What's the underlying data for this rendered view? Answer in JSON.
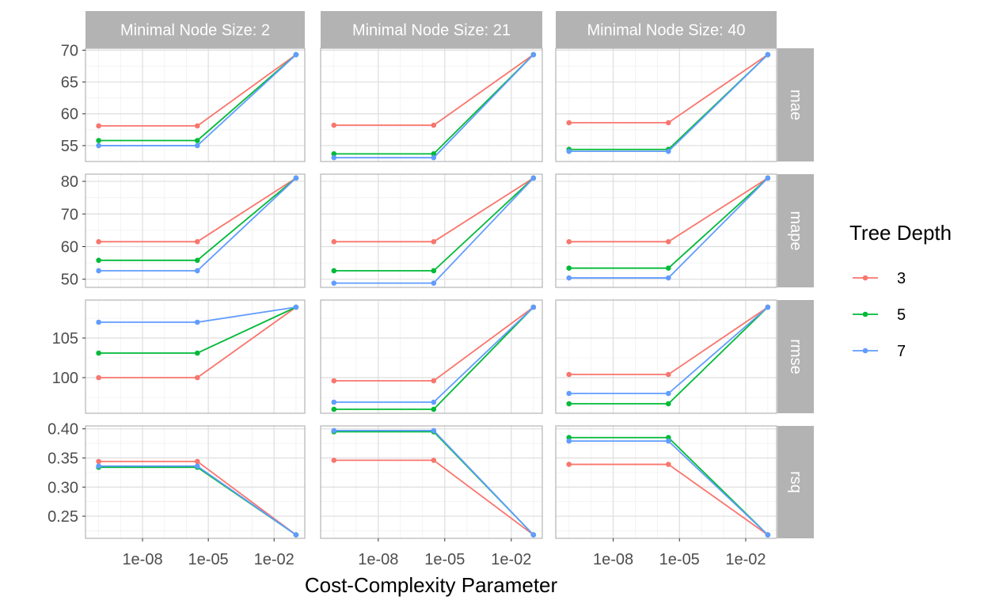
{
  "chart_data": {
    "type": "line",
    "xlabel": "Cost-Complexity Parameter",
    "x_scale": "log10",
    "x": [
      1e-10,
      3.1623e-06,
      0.1
    ],
    "x_ticks": [
      {
        "value": 1e-08,
        "label": "1e-08"
      },
      {
        "value": 1e-05,
        "label": "1e-05"
      },
      {
        "value": 0.01,
        "label": "1e-02"
      }
    ],
    "grid": true,
    "legend": {
      "title": "Tree Depth",
      "placement": "right",
      "entries": [
        {
          "label": "3",
          "color": "#F8766D"
        },
        {
          "label": "5",
          "color": "#00BA38"
        },
        {
          "label": "7",
          "color": "#619CFF"
        }
      ]
    },
    "col_facets": [
      "Minimal Node Size: 2",
      "Minimal Node Size: 21",
      "Minimal Node Size: 40"
    ],
    "row_facets": [
      {
        "label": "mae",
        "ylim": [
          52.5,
          70.3
        ],
        "y_ticks": [
          55,
          60,
          65,
          70
        ],
        "panels": [
          {
            "series": [
              {
                "name": "3",
                "values": [
                  58.1,
                  58.1,
                  69.3
                ]
              },
              {
                "name": "5",
                "values": [
                  55.8,
                  55.8,
                  69.3
                ]
              },
              {
                "name": "7",
                "values": [
                  55.0,
                  55.0,
                  69.3
                ]
              }
            ]
          },
          {
            "series": [
              {
                "name": "3",
                "values": [
                  58.2,
                  58.2,
                  69.3
                ]
              },
              {
                "name": "5",
                "values": [
                  53.7,
                  53.7,
                  69.3
                ]
              },
              {
                "name": "7",
                "values": [
                  53.1,
                  53.1,
                  69.3
                ]
              }
            ]
          },
          {
            "series": [
              {
                "name": "3",
                "values": [
                  58.6,
                  58.6,
                  69.3
                ]
              },
              {
                "name": "5",
                "values": [
                  54.4,
                  54.4,
                  69.3
                ]
              },
              {
                "name": "7",
                "values": [
                  54.1,
                  54.1,
                  69.3
                ]
              }
            ]
          }
        ]
      },
      {
        "label": "mape",
        "ylim": [
          47.5,
          82.2
        ],
        "y_ticks": [
          50,
          60,
          70,
          80
        ],
        "panels": [
          {
            "series": [
              {
                "name": "3",
                "values": [
                  61.5,
                  61.5,
                  81.0
                ]
              },
              {
                "name": "5",
                "values": [
                  55.8,
                  55.8,
                  81.0
                ]
              },
              {
                "name": "7",
                "values": [
                  52.6,
                  52.6,
                  81.0
                ]
              }
            ]
          },
          {
            "series": [
              {
                "name": "3",
                "values": [
                  61.5,
                  61.5,
                  81.0
                ]
              },
              {
                "name": "5",
                "values": [
                  52.6,
                  52.6,
                  81.0
                ]
              },
              {
                "name": "7",
                "values": [
                  48.8,
                  48.8,
                  81.0
                ]
              }
            ]
          },
          {
            "series": [
              {
                "name": "3",
                "values": [
                  61.5,
                  61.5,
                  81.0
                ]
              },
              {
                "name": "5",
                "values": [
                  53.4,
                  53.4,
                  81.0
                ]
              },
              {
                "name": "7",
                "values": [
                  50.4,
                  50.4,
                  81.0
                ]
              }
            ]
          }
        ]
      },
      {
        "label": "rmse",
        "ylim": [
          95.5,
          109.8
        ],
        "y_ticks": [
          100,
          105
        ],
        "panels": [
          {
            "series": [
              {
                "name": "3",
                "values": [
                  100.0,
                  100.0,
                  108.9
                ]
              },
              {
                "name": "5",
                "values": [
                  103.1,
                  103.1,
                  108.9
                ]
              },
              {
                "name": "7",
                "values": [
                  107.0,
                  107.0,
                  108.9
                ]
              }
            ]
          },
          {
            "series": [
              {
                "name": "3",
                "values": [
                  99.6,
                  99.6,
                  108.9
                ]
              },
              {
                "name": "5",
                "values": [
                  96.0,
                  96.0,
                  108.9
                ]
              },
              {
                "name": "7",
                "values": [
                  96.9,
                  96.9,
                  108.9
                ]
              }
            ]
          },
          {
            "series": [
              {
                "name": "3",
                "values": [
                  100.4,
                  100.4,
                  108.9
                ]
              },
              {
                "name": "5",
                "values": [
                  96.7,
                  96.7,
                  108.9
                ]
              },
              {
                "name": "7",
                "values": [
                  98.0,
                  98.0,
                  108.9
                ]
              }
            ]
          }
        ]
      },
      {
        "label": "rsq",
        "ylim": [
          0.212,
          0.405
        ],
        "y_ticks": [
          {
            "value": 0.25,
            "label": "0.25"
          },
          {
            "value": 0.3,
            "label": "0.30"
          },
          {
            "value": 0.35,
            "label": "0.35"
          },
          {
            "value": 0.4,
            "label": "0.40"
          }
        ],
        "panels": [
          {
            "series": [
              {
                "name": "3",
                "values": [
                  0.344,
                  0.344,
                  0.218
                ]
              },
              {
                "name": "5",
                "values": [
                  0.334,
                  0.334,
                  0.218
                ]
              },
              {
                "name": "7",
                "values": [
                  0.336,
                  0.336,
                  0.218
                ]
              }
            ]
          },
          {
            "series": [
              {
                "name": "3",
                "values": [
                  0.346,
                  0.346,
                  0.218
                ]
              },
              {
                "name": "5",
                "values": [
                  0.395,
                  0.395,
                  0.218
                ]
              },
              {
                "name": "7",
                "values": [
                  0.397,
                  0.397,
                  0.218
                ]
              }
            ]
          },
          {
            "series": [
              {
                "name": "3",
                "values": [
                  0.339,
                  0.339,
                  0.218
                ]
              },
              {
                "name": "5",
                "values": [
                  0.385,
                  0.385,
                  0.218
                ]
              },
              {
                "name": "7",
                "values": [
                  0.379,
                  0.379,
                  0.218
                ]
              }
            ]
          }
        ]
      }
    ]
  }
}
